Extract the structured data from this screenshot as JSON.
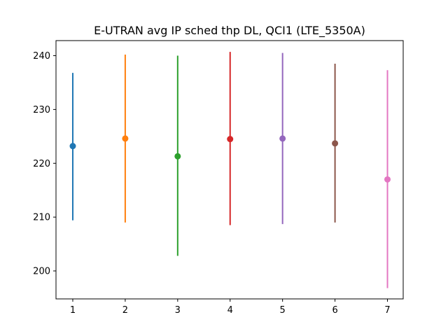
{
  "chart_data": {
    "type": "scatter",
    "title": "E-UTRAN avg IP sched thp DL, QCI1 (LTE_5350A)",
    "xlabel": "",
    "ylabel": "",
    "x_ticks": [
      "1",
      "2",
      "3",
      "4",
      "5",
      "6",
      "7"
    ],
    "y_ticks": [
      "200",
      "210",
      "220",
      "230",
      "240"
    ],
    "xlim": [
      0.68,
      7.3
    ],
    "ylim": [
      194.8,
      242.8
    ],
    "grid": false,
    "series": [
      {
        "x": 1,
        "mean": 223.2,
        "low": 209.4,
        "high": 236.8,
        "color": "#1f77b4"
      },
      {
        "x": 2,
        "mean": 224.6,
        "low": 209.0,
        "high": 240.2,
        "color": "#ff7f0e"
      },
      {
        "x": 3,
        "mean": 221.3,
        "low": 202.8,
        "high": 240.0,
        "color": "#2ca02c"
      },
      {
        "x": 4,
        "mean": 224.5,
        "low": 208.5,
        "high": 240.7,
        "color": "#d62728"
      },
      {
        "x": 5,
        "mean": 224.6,
        "low": 208.7,
        "high": 240.5,
        "color": "#9467bd"
      },
      {
        "x": 6,
        "mean": 223.7,
        "low": 209.0,
        "high": 238.5,
        "color": "#8c564b"
      },
      {
        "x": 7,
        "mean": 217.0,
        "low": 196.8,
        "high": 237.3,
        "color": "#e377c2"
      }
    ]
  }
}
